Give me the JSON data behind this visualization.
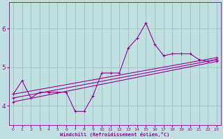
{
  "line_color": "#990099",
  "bg_color": "#c0e0e0",
  "grid_color": "#a0c8c8",
  "xlabel": "Windchill (Refroidissement éolien,°C)",
  "xlabel_color": "#990099",
  "tick_color": "#990099",
  "ylim": [
    3.5,
    6.7
  ],
  "xlim": [
    -0.5,
    23.5
  ],
  "yticks": [
    4,
    5,
    6
  ],
  "xticks": [
    0,
    1,
    2,
    3,
    4,
    5,
    6,
    7,
    8,
    9,
    10,
    11,
    12,
    13,
    14,
    15,
    16,
    17,
    18,
    19,
    20,
    21,
    22,
    23
  ],
  "series1_x": [
    0,
    1,
    2,
    3,
    4,
    5,
    6,
    7,
    8,
    9,
    10,
    11,
    12,
    13,
    14,
    15,
    16,
    17,
    18,
    19,
    20,
    21,
    22,
    23
  ],
  "series1_y": [
    4.3,
    4.65,
    4.2,
    4.35,
    4.35,
    4.35,
    4.35,
    3.85,
    3.85,
    4.25,
    4.85,
    4.85,
    4.85,
    5.5,
    5.75,
    6.15,
    5.6,
    5.3,
    5.35,
    5.35,
    5.35,
    5.2,
    5.15,
    5.2
  ],
  "series2_x": [
    0,
    23
  ],
  "series2_y": [
    4.1,
    5.15
  ],
  "series3_x": [
    0,
    23
  ],
  "series3_y": [
    4.2,
    5.2
  ],
  "series4_x": [
    0,
    23
  ],
  "series4_y": [
    4.3,
    5.25
  ]
}
